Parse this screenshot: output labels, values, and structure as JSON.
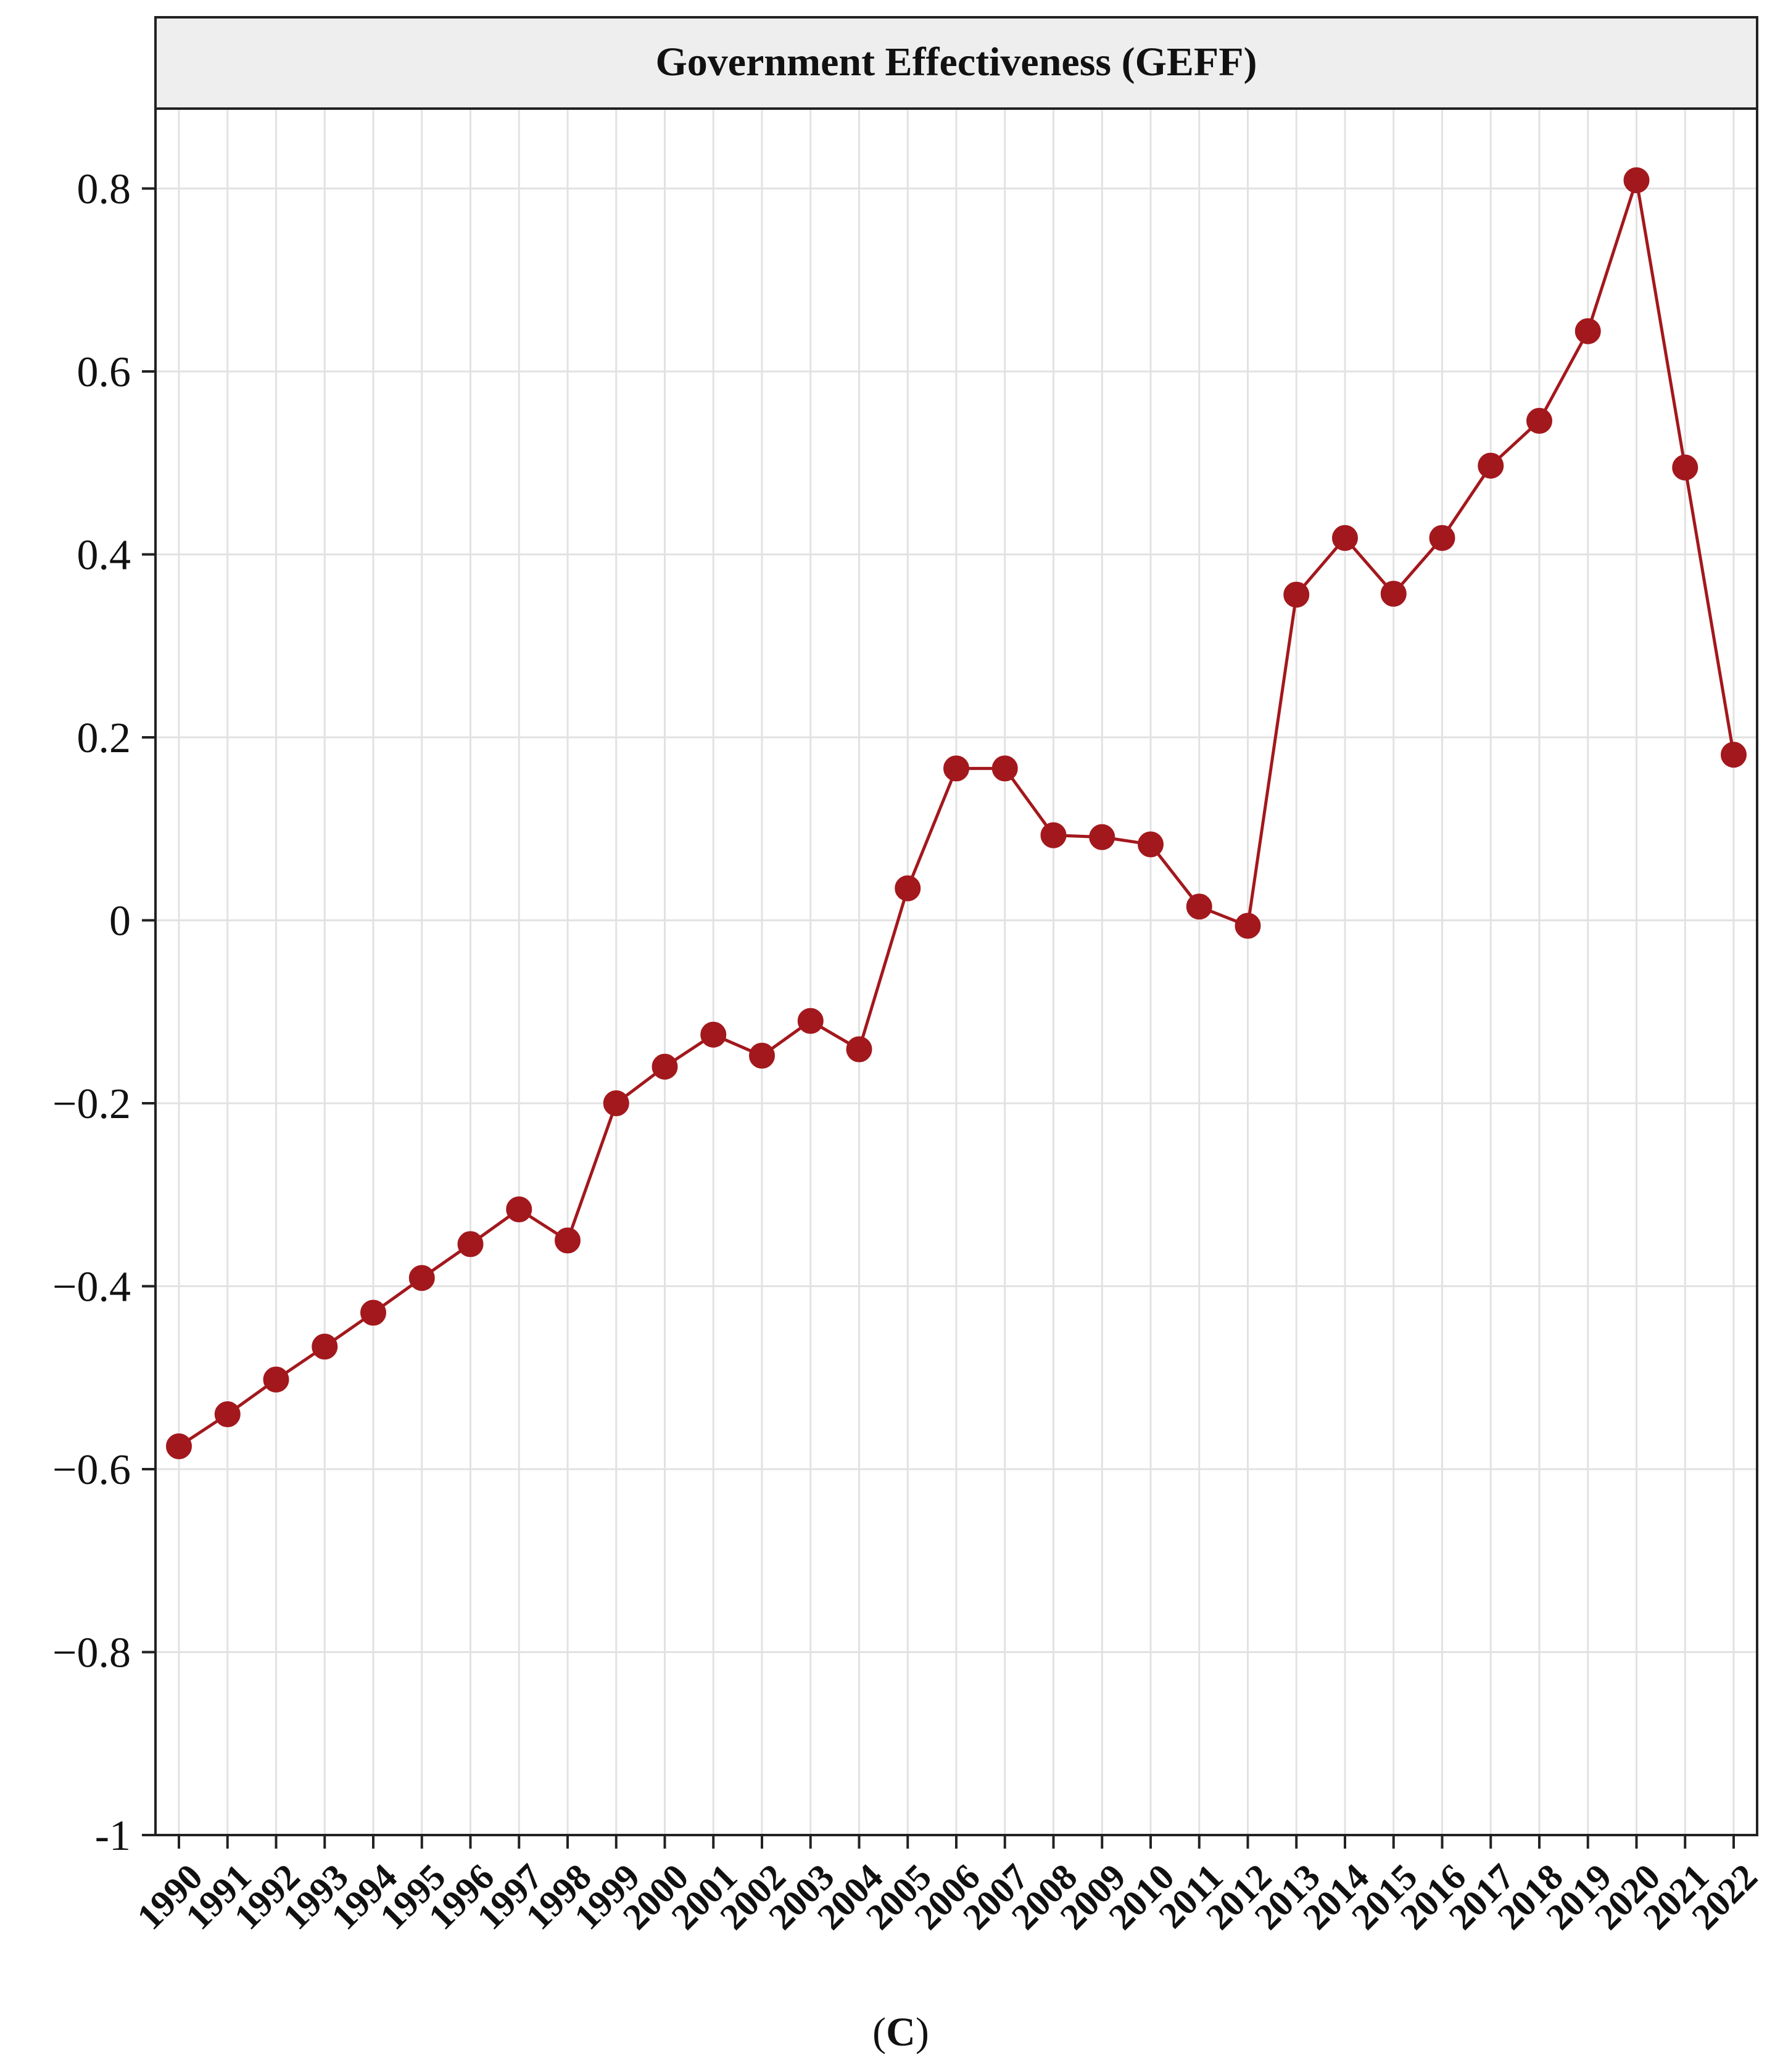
{
  "colors": {
    "series": "#a3181d",
    "grid": "#e2e2e2",
    "axis": "#222222",
    "header_bg": "#eeeeee"
  },
  "chart_data": {
    "type": "line",
    "title": "Government Effectiveness (GEFF)",
    "caption_open": "(",
    "caption_letter": "C",
    "caption_close": ")",
    "xlabel": "",
    "ylabel": "",
    "ylim": [
      -1,
      0.88
    ],
    "yticks": [
      -1,
      -0.8,
      -0.6,
      -0.4,
      -0.2,
      0,
      0.2,
      0.4,
      0.6,
      0.8
    ],
    "ytick_labels": [
      "-1",
      "−0.8",
      "−0.6",
      "−0.4",
      "−0.2",
      "0",
      "0.2",
      "0.4",
      "0.6",
      "0.8"
    ],
    "grid": true,
    "marker": "circle",
    "x": [
      "1990",
      "1991",
      "1992",
      "1993",
      "1994",
      "1995",
      "1996",
      "1997",
      "1998",
      "1999",
      "2000",
      "2001",
      "2002",
      "2003",
      "2004",
      "2005",
      "2006",
      "2007",
      "2008",
      "2009",
      "2010",
      "2011",
      "2012",
      "2013",
      "2014",
      "2015",
      "2016",
      "2017",
      "2018",
      "2019",
      "2020",
      "2021",
      "2022"
    ],
    "series": [
      {
        "values": [
          -0.575,
          -0.54,
          -0.502,
          -0.466,
          -0.429,
          -0.391,
          -0.354,
          -0.316,
          -0.35,
          -0.2,
          -0.16,
          -0.125,
          -0.148,
          -0.11,
          -0.141,
          0.035,
          0.166,
          0.166,
          0.093,
          0.091,
          0.083,
          0.015,
          -0.006,
          0.356,
          0.418,
          0.357,
          0.418,
          0.497,
          0.546,
          0.644,
          0.809,
          0.495,
          0.181
        ]
      }
    ]
  }
}
